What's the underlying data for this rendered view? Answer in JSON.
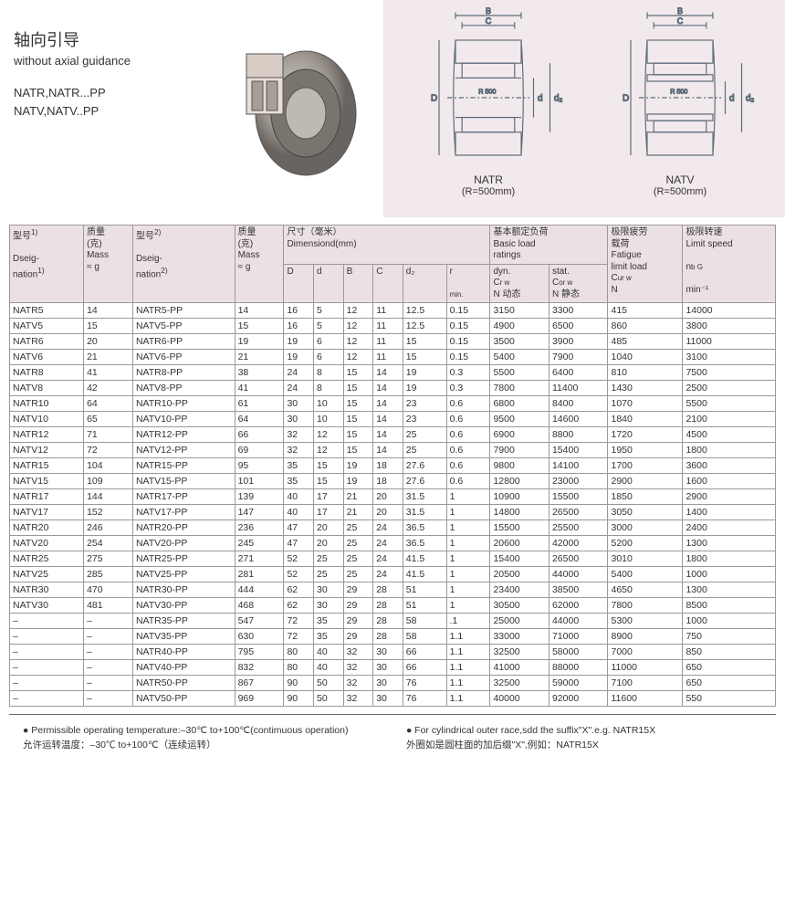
{
  "header": {
    "title_cn": "轴向引导",
    "title_en": "without axial guidance",
    "models_line1": "NATR,NATR...PP",
    "models_line2": "NATV,NATV..PP"
  },
  "diagrams": {
    "bg_color": "#f2e9ec",
    "line_color": "#5b6b7a",
    "left": {
      "name": "NATR",
      "subtitle": "(R=500mm)",
      "r_label": "R 500"
    },
    "right": {
      "name": "NATV",
      "subtitle": "(R=500mm)",
      "r_label": "R 500"
    },
    "dim_labels": {
      "D": "D",
      "d": "d",
      "d2": "d₂",
      "B": "B",
      "C": "C"
    }
  },
  "table": {
    "bg_header": "#ebe1e5",
    "border_color": "#999",
    "headers": {
      "desig1": "型号",
      "desig1_sup": "1)",
      "desig1_en": "Dseig-\nnation",
      "desig1_en_sup": "1)",
      "mass": "质量\n(克)\nMass\n≈ g",
      "desig2": "型号",
      "desig2_sup": "2)",
      "desig2_en": "Dseig-\nnation",
      "desig2_en_sup": "2)",
      "mass2": "质量\n(克)\nMass\n≈ g",
      "dim_cn": "尺寸（毫米）",
      "dim_en": "Dimensiond(mm)",
      "D": "D",
      "d": "d",
      "B": "B",
      "C": "C",
      "d2": "d₂",
      "r": "r",
      "r_min": "min.",
      "load_cn": "基本额定负荷",
      "load_en": "Basic load\nratings",
      "dyn": "dyn.\nCr w\nN 动态",
      "stat": "stat.\nCor w\nN 静态",
      "fatigue_cn": "极限疲劳\n载荷",
      "fatigue_en": "Fatigue\nlimit load\nCur w\nN",
      "speed_cn": "极限转速",
      "speed_en": "Limit speed\nnb G\nmin⁻¹"
    },
    "groups": [
      [
        [
          "NATR5",
          "14",
          "NATR5-PP",
          "14",
          "16",
          "5",
          "12",
          "11",
          "12.5",
          "0.15",
          "3150",
          "3300",
          "415",
          "14000"
        ],
        [
          "NATV5",
          "15",
          "NATV5-PP",
          "15",
          "16",
          "5",
          "12",
          "11",
          "12.5",
          "0.15",
          "4900",
          "6500",
          "860",
          "3800"
        ]
      ],
      [
        [
          "NATR6",
          "20",
          "NATR6-PP",
          "19",
          "19",
          "6",
          "12",
          "11",
          "15",
          "0.15",
          "3500",
          "3900",
          "485",
          "11000"
        ],
        [
          "NATV6",
          "21",
          "NATV6-PP",
          "21",
          "19",
          "6",
          "12",
          "11",
          "15",
          "0.15",
          "5400",
          "7900",
          "1040",
          "3100"
        ]
      ],
      [
        [
          "NATR8",
          "41",
          "NATR8-PP",
          "38",
          "24",
          "8",
          "15",
          "14",
          "19",
          "0.3",
          "5500",
          "6400",
          "810",
          "7500"
        ],
        [
          "NATV8",
          "42",
          "NATV8-PP",
          "41",
          "24",
          "8",
          "15",
          "14",
          "19",
          "0.3",
          "7800",
          "11400",
          "1430",
          "2500"
        ]
      ],
      [
        [
          "NATR10",
          "64",
          "NATR10-PP",
          "61",
          "30",
          "10",
          "15",
          "14",
          "23",
          "0.6",
          "6800",
          "8400",
          "1070",
          "5500"
        ],
        [
          "NATV10",
          "65",
          "NATV10-PP",
          "64",
          "30",
          "10",
          "15",
          "14",
          "23",
          "0.6",
          "9500",
          "14600",
          "1840",
          "2100"
        ]
      ],
      [
        [
          "NATR12",
          "71",
          "NATR12-PP",
          "66",
          "32",
          "12",
          "15",
          "14",
          "25",
          "0.6",
          "6900",
          "8800",
          "1720",
          "4500"
        ],
        [
          "NATV12",
          "72",
          "NATV12-PP",
          "69",
          "32",
          "12",
          "15",
          "14",
          "25",
          "0.6",
          "7900",
          "15400",
          "1950",
          "1800"
        ]
      ],
      [
        [
          "NATR15",
          "104",
          "NATR15-PP",
          "95",
          "35",
          "15",
          "19",
          "18",
          "27.6",
          "0.6",
          "9800",
          "14100",
          "1700",
          "3600"
        ],
        [
          "NATV15",
          "109",
          "NATV15-PP",
          "101",
          "35",
          "15",
          "19",
          "18",
          "27.6",
          "0.6",
          "12800",
          "23000",
          "2900",
          "1600"
        ]
      ],
      [
        [
          "NATR17",
          "144",
          "NATR17-PP",
          "139",
          "40",
          "17",
          "21",
          "20",
          "31.5",
          "1",
          "10900",
          "15500",
          "1850",
          "2900"
        ],
        [
          "NATV17",
          "152",
          "NATV17-PP",
          "147",
          "40",
          "17",
          "21",
          "20",
          "31.5",
          "1",
          "14800",
          "26500",
          "3050",
          "1400"
        ]
      ],
      [
        [
          "NATR20",
          "246",
          "NATR20-PP",
          "236",
          "47",
          "20",
          "25",
          "24",
          "36.5",
          "1",
          "15500",
          "25500",
          "3000",
          "2400"
        ],
        [
          "NATV20",
          "254",
          "NATV20-PP",
          "245",
          "47",
          "20",
          "25",
          "24",
          "36.5",
          "1",
          "20600",
          "42000",
          "5200",
          "1300"
        ]
      ],
      [
        [
          "NATR25",
          "275",
          "NATR25-PP",
          "271",
          "52",
          "25",
          "25",
          "24",
          "41.5",
          "1",
          "15400",
          "26500",
          "3010",
          "1800"
        ],
        [
          "NATV25",
          "285",
          "NATV25-PP",
          "281",
          "52",
          "25",
          "25",
          "24",
          "41.5",
          "1",
          "20500",
          "44000",
          "5400",
          "1000"
        ]
      ],
      [
        [
          "NATR30",
          "470",
          "NATR30-PP",
          "444",
          "62",
          "30",
          "29",
          "28",
          "51",
          "1",
          "23400",
          "38500",
          "4650",
          "1300"
        ],
        [
          "NATV30",
          "481",
          "NATV30-PP",
          "468",
          "62",
          "30",
          "29",
          "28",
          "51",
          "1",
          "30500",
          "62000",
          "7800",
          "8500"
        ]
      ],
      [
        [
          "–",
          "–",
          "NATR35-PP",
          "547",
          "72",
          "35",
          "29",
          "28",
          "58",
          ".1",
          "25000",
          "44000",
          "5300",
          "1000"
        ],
        [
          "–",
          "–",
          "NATV35-PP",
          "630",
          "72",
          "35",
          "29",
          "28",
          "58",
          "1.1",
          "33000",
          "71000",
          "8900",
          "750"
        ]
      ],
      [
        [
          "–",
          "–",
          "NATR40-PP",
          "795",
          "80",
          "40",
          "32",
          "30",
          "66",
          "1.1",
          "32500",
          "58000",
          "7000",
          "850"
        ],
        [
          "–",
          "–",
          "NATV40-PP",
          "832",
          "80",
          "40",
          "32",
          "30",
          "66",
          "1.1",
          "41000",
          "88000",
          "11000",
          "650"
        ]
      ],
      [
        [
          "–",
          "–",
          "NATR50-PP",
          "867",
          "90",
          "50",
          "32",
          "30",
          "76",
          "1.1",
          "32500",
          "59000",
          "7100",
          "650"
        ],
        [
          "–",
          "–",
          "NATV50-PP",
          "969",
          "90",
          "50",
          "32",
          "30",
          "76",
          "1.1",
          "40000",
          "92000",
          "11600",
          "550"
        ]
      ]
    ]
  },
  "footnotes": {
    "left1": "● Permissible operating temperature:–30℃ to+100℃(contimuous operation)",
    "left2": "允许运转温度：–30℃ to+100℃（连续运转）",
    "right1": "● For cylindrical outer race,sdd the suffix\"X\".e.g. NATR15X",
    "right2": "外圈如是圆柱面的加后缀\"X\",例如：NATR15X"
  }
}
